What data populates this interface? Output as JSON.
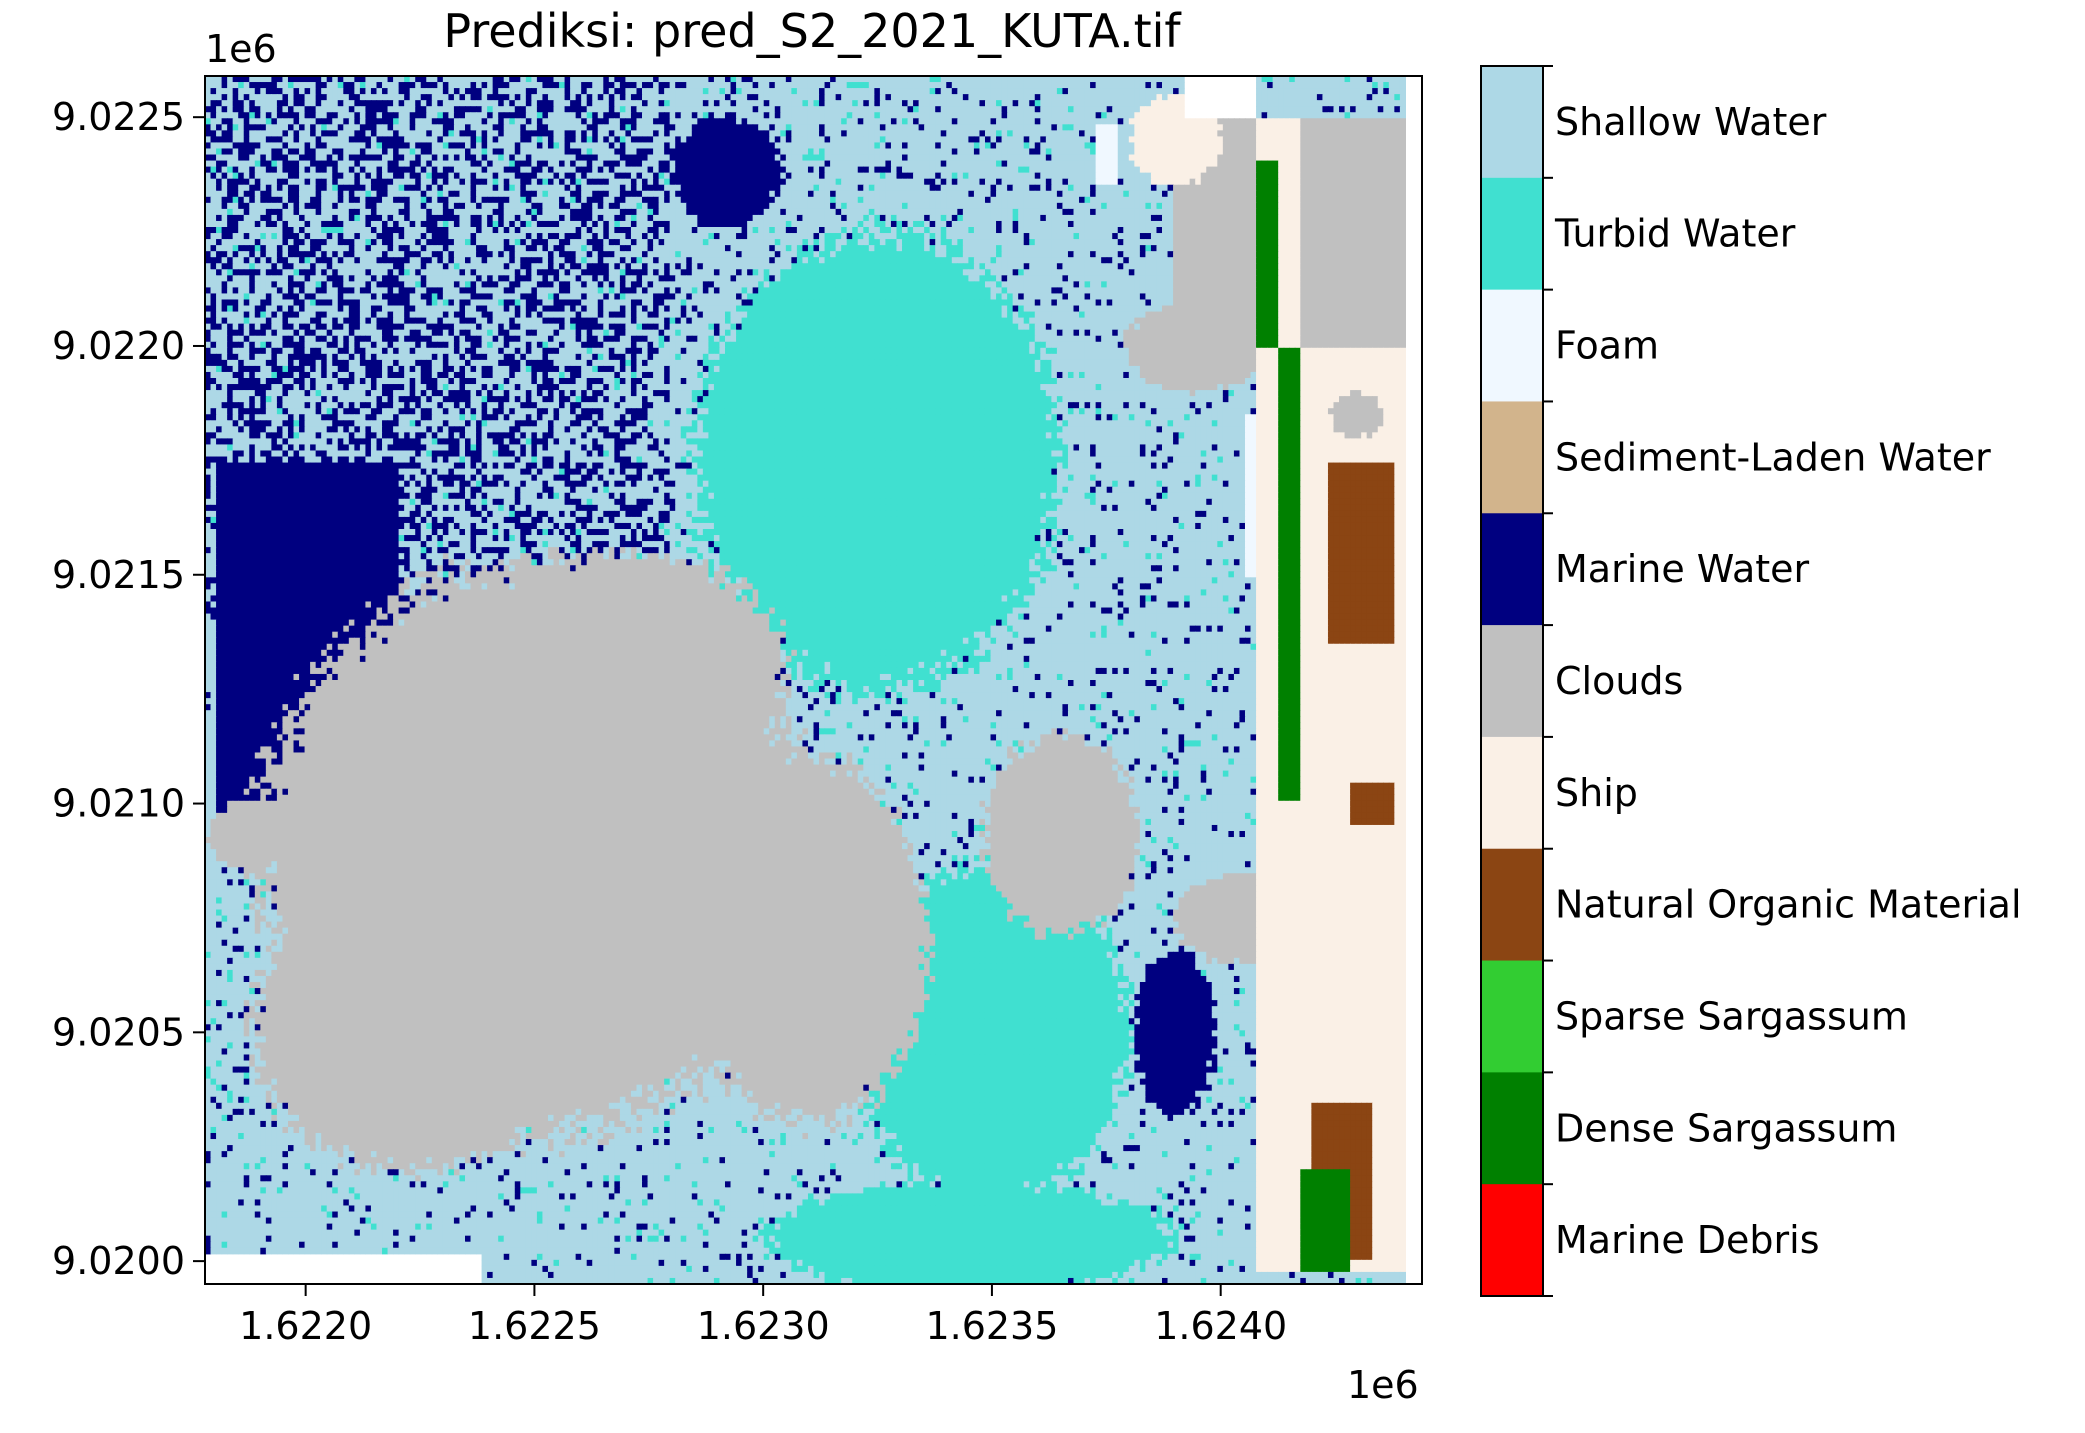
{
  "chart_data": {
    "type": "heatmap",
    "title": "Prediksi: pred_S2_2021_KUTA.tif",
    "x_offset_label": "1e6",
    "y_offset_label": "1e6",
    "xlim": [
      1.62178,
      1.62444
    ],
    "ylim": [
      9.01995,
      9.02259
    ],
    "x_ticks": [
      {
        "value": 1.622,
        "label": "1.6220"
      },
      {
        "value": 1.6225,
        "label": "1.6225"
      },
      {
        "value": 1.623,
        "label": "1.6230"
      },
      {
        "value": 1.6235,
        "label": "1.6235"
      },
      {
        "value": 1.624,
        "label": "1.6240"
      }
    ],
    "y_ticks": [
      {
        "value": 9.0225,
        "label": "9.0225"
      },
      {
        "value": 9.022,
        "label": "9.0220"
      },
      {
        "value": 9.0215,
        "label": "9.0215"
      },
      {
        "value": 9.021,
        "label": "9.0210"
      },
      {
        "value": 9.0205,
        "label": "9.0205"
      },
      {
        "value": 9.02,
        "label": "9.0200"
      }
    ],
    "classes": [
      {
        "name": "Shallow Water",
        "color": "#ADD8E6"
      },
      {
        "name": "Turbid Water",
        "color": "#40E0D0"
      },
      {
        "name": "Foam",
        "color": "#F0F8FF"
      },
      {
        "name": "Sediment-Laden Water",
        "color": "#D2B48C"
      },
      {
        "name": "Marine Water",
        "color": "#000080"
      },
      {
        "name": "Clouds",
        "color": "#C0C0C0"
      },
      {
        "name": "Ship",
        "color": "#FAF0E6"
      },
      {
        "name": "Natural Organic Material",
        "color": "#8B4513"
      },
      {
        "name": "Sparse Sargassum",
        "color": "#32CD32"
      },
      {
        "name": "Dense Sargassum",
        "color": "#008000"
      },
      {
        "name": "Marine Debris",
        "color": "#FF0000"
      }
    ],
    "regions": [
      {
        "cls": 4,
        "shape": "rect",
        "bounds": [
          1.6218,
          1.6222,
          9.0209,
          9.02175
        ]
      },
      {
        "cls": 4,
        "shape": "ellipse",
        "c": [
          1.6235,
          9.02052
        ],
        "r": [
          0.00011,
          0.00018
        ]
      },
      {
        "cls": 4,
        "shape": "ellipse",
        "c": [
          1.6235,
          9.02052
        ],
        "r": [
          0.0002,
          0.00032
        ]
      },
      {
        "cls": 4,
        "shape": "ellipse",
        "c": [
          1.62292,
          9.02238
        ],
        "r": [
          0.00012,
          0.00012
        ]
      },
      {
        "cls": 4,
        "shape": "ellipse",
        "c": [
          1.6239,
          9.0205
        ],
        "r": [
          9e-05,
          0.00018
        ]
      },
      {
        "cls": 4,
        "shape": "ellipse",
        "c": [
          1.6235,
          9.02002
        ],
        "r": [
          0.0002,
          9e-05
        ]
      },
      {
        "cls": 1,
        "shape": "ellipse",
        "c": [
          1.62325,
          9.02175
        ],
        "r": [
          0.0004,
          0.0005
        ]
      },
      {
        "cls": 1,
        "shape": "ellipse",
        "c": [
          1.62345,
          9.02005
        ],
        "r": [
          0.00045,
          0.00012
        ]
      },
      {
        "cls": 1,
        "shape": "ellipse",
        "c": [
          1.6235,
          9.0205
        ],
        "r": [
          0.0003,
          0.00037
        ]
      },
      {
        "cls": 5,
        "shape": "ellipse",
        "c": [
          1.6225,
          9.0209
        ],
        "r": [
          0.0006,
          0.00062
        ]
      },
      {
        "cls": 5,
        "shape": "ellipse",
        "c": [
          1.6227,
          9.0213
        ],
        "r": [
          0.00035,
          0.00025
        ]
      },
      {
        "cls": 5,
        "shape": "ellipse",
        "c": [
          1.6231,
          9.0207
        ],
        "r": [
          0.00026,
          0.0004
        ]
      },
      {
        "cls": 5,
        "shape": "ellipse",
        "c": [
          1.62223,
          9.0205
        ],
        "r": [
          0.00035,
          0.0003
        ]
      },
      {
        "cls": 5,
        "shape": "ellipse",
        "c": [
          1.62365,
          9.02093
        ],
        "r": [
          0.00017,
          0.00022
        ]
      },
      {
        "cls": 5,
        "shape": "ellipse",
        "c": [
          1.62188,
          9.02093
        ],
        "r": [
          9e-05,
          8e-05
        ]
      },
      {
        "cls": 5,
        "shape": "ellipse",
        "c": [
          1.62405,
          9.02075
        ],
        "r": [
          0.00015,
          0.0001
        ]
      },
      {
        "cls": 5,
        "shape": "ellipse",
        "c": [
          1.62395,
          9.022
        ],
        "r": [
          0.00016,
          0.0001
        ]
      },
      {
        "cls": 5,
        "shape": "rect",
        "bounds": [
          1.6239,
          1.6244,
          9.022,
          9.0225
        ]
      },
      {
        "cls": 5,
        "shape": "ellipse",
        "c": [
          1.6243,
          9.0214
        ],
        "r": [
          0.0001,
          0.0002
        ]
      },
      {
        "cls": 6,
        "shape": "rect",
        "bounds": [
          1.62408,
          1.62418,
          9.01997,
          9.0225
        ]
      },
      {
        "cls": 6,
        "shape": "rect",
        "bounds": [
          1.62418,
          1.6244,
          9.01997,
          9.022
        ]
      },
      {
        "cls": 6,
        "shape": "ellipse",
        "c": [
          1.6239,
          9.02245
        ],
        "r": [
          0.0001,
          0.0001
        ]
      },
      {
        "cls": 5,
        "shape": "ellipse",
        "c": [
          1.6243,
          9.02185
        ],
        "r": [
          6e-05,
          5e-05
        ]
      },
      {
        "cls": 7,
        "shape": "rect",
        "bounds": [
          1.62423,
          1.62438,
          9.02135,
          9.02175
        ]
      },
      {
        "cls": 7,
        "shape": "rect",
        "bounds": [
          1.62428,
          1.62438,
          9.02095,
          9.02105
        ]
      },
      {
        "cls": 7,
        "shape": "rect",
        "bounds": [
          1.6242,
          1.62433,
          9.02,
          9.02035
        ]
      },
      {
        "cls": 9,
        "shape": "rect",
        "bounds": [
          1.62408,
          1.62413,
          9.022,
          9.0224
        ]
      },
      {
        "cls": 9,
        "shape": "rect",
        "bounds": [
          1.62413,
          1.62418,
          9.021,
          9.022
        ]
      },
      {
        "cls": 9,
        "shape": "rect",
        "bounds": [
          1.62418,
          1.62428,
          9.01998,
          9.0202
        ]
      },
      {
        "cls": 2,
        "shape": "rect",
        "bounds": [
          1.62373,
          1.62378,
          9.02235,
          9.02248
        ]
      },
      {
        "cls": 2,
        "shape": "rect",
        "bounds": [
          1.62405,
          1.62408,
          9.0215,
          9.02185
        ]
      }
    ]
  },
  "legend": {
    "labels": [
      "Shallow Water",
      "Turbid Water",
      "Foam",
      "Sediment-Laden Water",
      "Marine Water",
      "Clouds",
      "Ship",
      "Natural Organic Material",
      "Sparse Sargassum",
      "Dense Sargassum",
      "Marine Debris"
    ]
  }
}
